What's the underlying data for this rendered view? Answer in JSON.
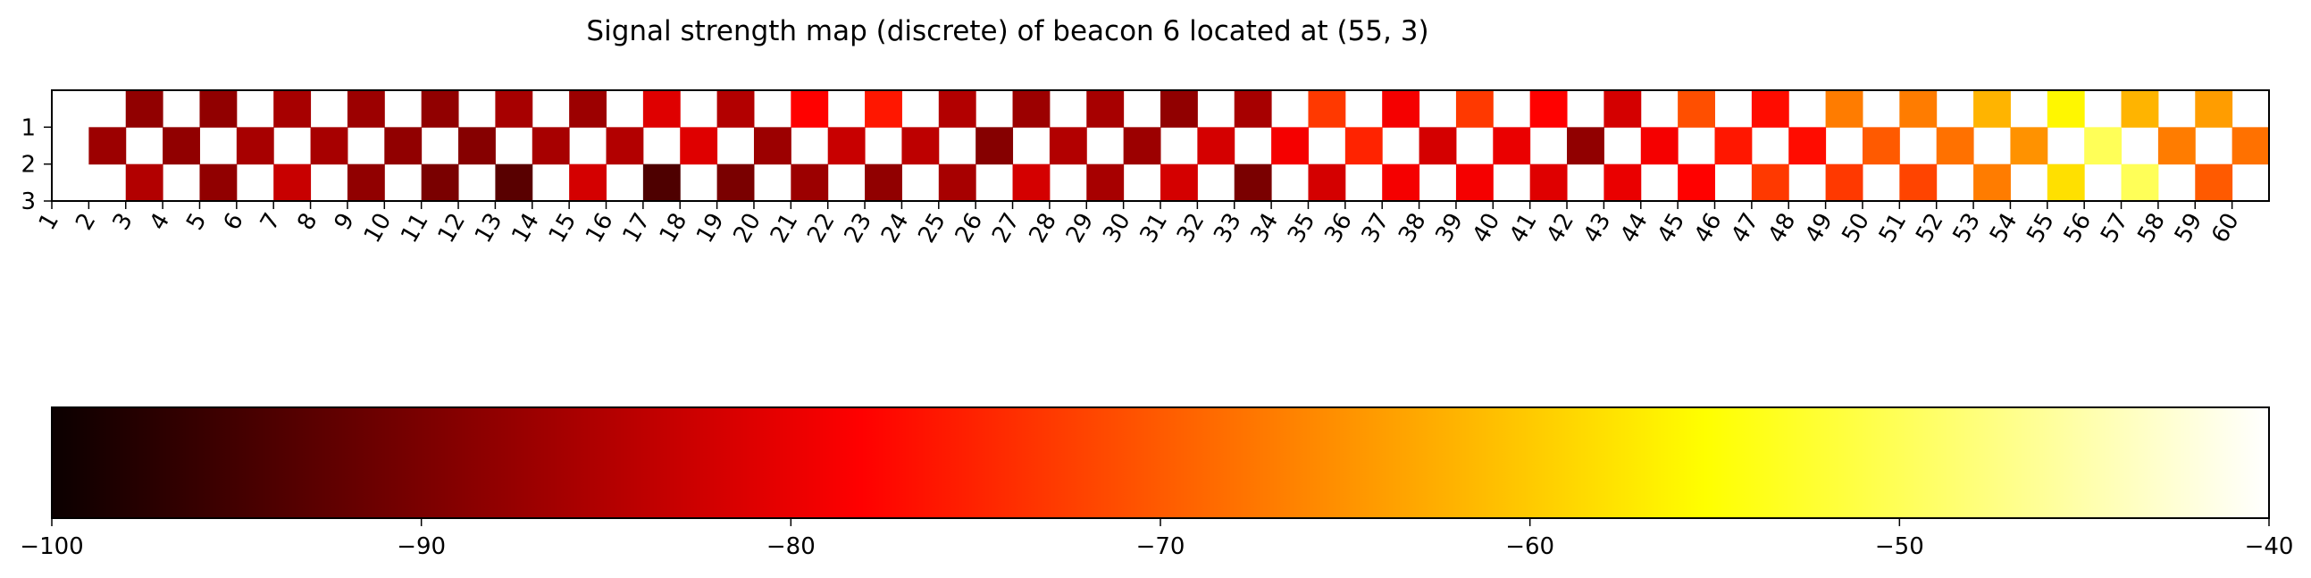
{
  "chart_data": {
    "type": "heatmap",
    "title": "Signal strength map (discrete) of beacon 6 located at (55, 3)",
    "colormap": "hot",
    "x_ticks": [
      1,
      2,
      3,
      4,
      5,
      6,
      7,
      8,
      9,
      10,
      11,
      12,
      13,
      14,
      15,
      16,
      17,
      18,
      19,
      20,
      21,
      22,
      23,
      24,
      25,
      26,
      27,
      28,
      29,
      30,
      31,
      32,
      33,
      34,
      35,
      36,
      37,
      38,
      39,
      40,
      41,
      42,
      43,
      44,
      45,
      46,
      47,
      48,
      49,
      50,
      51,
      52,
      53,
      54,
      55,
      56,
      57,
      58,
      59,
      60
    ],
    "y_ticks": [
      1,
      2,
      3
    ],
    "colorbar": {
      "min": -100,
      "max": -40,
      "ticks": [
        -100,
        -90,
        -80,
        -70,
        -60,
        -50,
        -40
      ]
    },
    "rows": [
      {
        "y": 1,
        "cells": [
          {
            "x": 3,
            "v": -88
          },
          {
            "x": 5,
            "v": -88
          },
          {
            "x": 7,
            "v": -86
          },
          {
            "x": 9,
            "v": -87
          },
          {
            "x": 11,
            "v": -88
          },
          {
            "x": 13,
            "v": -86
          },
          {
            "x": 15,
            "v": -87
          },
          {
            "x": 17,
            "v": -81
          },
          {
            "x": 19,
            "v": -85
          },
          {
            "x": 21,
            "v": -78
          },
          {
            "x": 23,
            "v": -76
          },
          {
            "x": 25,
            "v": -85
          },
          {
            "x": 27,
            "v": -87
          },
          {
            "x": 29,
            "v": -86
          },
          {
            "x": 31,
            "v": -88
          },
          {
            "x": 33,
            "v": -86
          },
          {
            "x": 35,
            "v": -73
          },
          {
            "x": 37,
            "v": -79
          },
          {
            "x": 39,
            "v": -73
          },
          {
            "x": 41,
            "v": -78
          },
          {
            "x": 43,
            "v": -82
          },
          {
            "x": 45,
            "v": -71
          },
          {
            "x": 47,
            "v": -77
          },
          {
            "x": 49,
            "v": -67
          },
          {
            "x": 51,
            "v": -67
          },
          {
            "x": 53,
            "v": -62
          },
          {
            "x": 55,
            "v": -56
          },
          {
            "x": 57,
            "v": -62
          },
          {
            "x": 59,
            "v": -64
          }
        ]
      },
      {
        "y": 2,
        "cells": [
          {
            "x": 2,
            "v": -87
          },
          {
            "x": 4,
            "v": -88
          },
          {
            "x": 6,
            "v": -86
          },
          {
            "x": 8,
            "v": -86
          },
          {
            "x": 10,
            "v": -88
          },
          {
            "x": 12,
            "v": -89
          },
          {
            "x": 14,
            "v": -86
          },
          {
            "x": 16,
            "v": -85
          },
          {
            "x": 18,
            "v": -81
          },
          {
            "x": 20,
            "v": -87
          },
          {
            "x": 22,
            "v": -83
          },
          {
            "x": 24,
            "v": -84
          },
          {
            "x": 26,
            "v": -89
          },
          {
            "x": 28,
            "v": -85
          },
          {
            "x": 30,
            "v": -87
          },
          {
            "x": 32,
            "v": -82
          },
          {
            "x": 34,
            "v": -79
          },
          {
            "x": 36,
            "v": -75
          },
          {
            "x": 38,
            "v": -82
          },
          {
            "x": 40,
            "v": -80
          },
          {
            "x": 42,
            "v": -88
          },
          {
            "x": 44,
            "v": -79
          },
          {
            "x": 46,
            "v": -76
          },
          {
            "x": 48,
            "v": -77
          },
          {
            "x": 50,
            "v": -70
          },
          {
            "x": 52,
            "v": -68
          },
          {
            "x": 54,
            "v": -65
          },
          {
            "x": 56,
            "v": -50
          },
          {
            "x": 58,
            "v": -67
          },
          {
            "x": 60,
            "v": -68
          }
        ]
      },
      {
        "y": 3,
        "cells": [
          {
            "x": 3,
            "v": -85
          },
          {
            "x": 5,
            "v": -88
          },
          {
            "x": 7,
            "v": -83
          },
          {
            "x": 9,
            "v": -88
          },
          {
            "x": 11,
            "v": -90
          },
          {
            "x": 13,
            "v": -93
          },
          {
            "x": 15,
            "v": -82
          },
          {
            "x": 17,
            "v": -94
          },
          {
            "x": 19,
            "v": -90
          },
          {
            "x": 21,
            "v": -87
          },
          {
            "x": 23,
            "v": -88
          },
          {
            "x": 25,
            "v": -86
          },
          {
            "x": 27,
            "v": -82
          },
          {
            "x": 29,
            "v": -86
          },
          {
            "x": 31,
            "v": -82
          },
          {
            "x": 33,
            "v": -90
          },
          {
            "x": 35,
            "v": -82
          },
          {
            "x": 37,
            "v": -79
          },
          {
            "x": 39,
            "v": -79
          },
          {
            "x": 41,
            "v": -81
          },
          {
            "x": 43,
            "v": -80
          },
          {
            "x": 45,
            "v": -78
          },
          {
            "x": 47,
            "v": -73
          },
          {
            "x": 49,
            "v": -73
          },
          {
            "x": 51,
            "v": -72
          },
          {
            "x": 53,
            "v": -67
          },
          {
            "x": 55,
            "v": -58
          },
          {
            "x": 57,
            "v": -50
          },
          {
            "x": 59,
            "v": -70
          }
        ]
      }
    ]
  }
}
